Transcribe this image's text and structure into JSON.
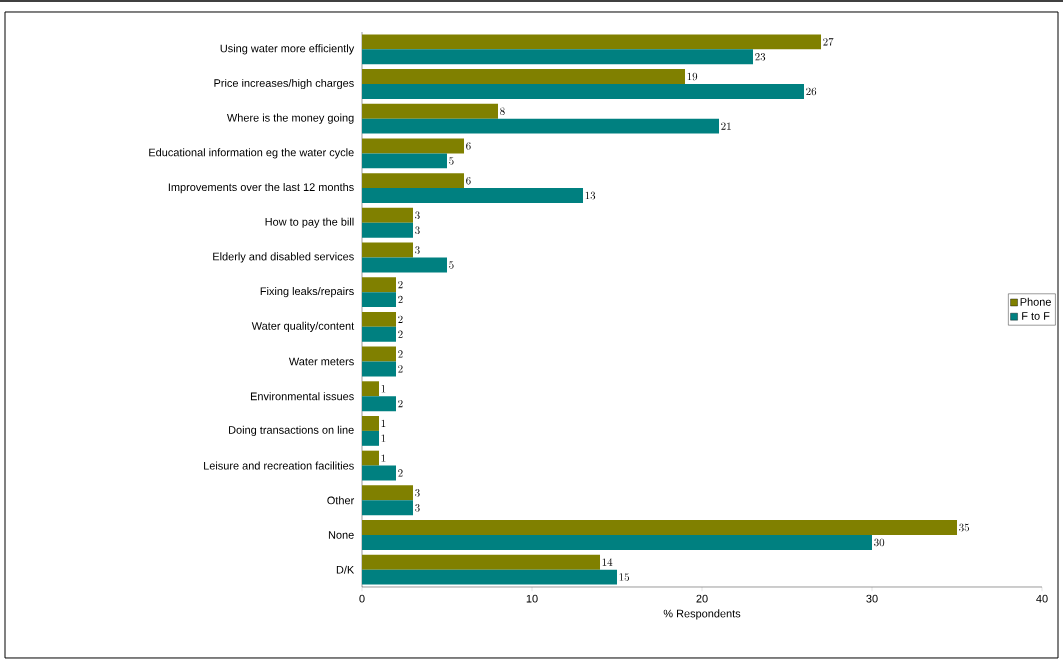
{
  "chart_data": {
    "type": "bar",
    "orientation": "horizontal",
    "xlabel": "% Respondents",
    "categories": [
      "Using water more efficiently",
      "Price increases/high charges",
      "Where is the money going",
      "Educational information eg the water cycle",
      "Improvements over the last 12 months",
      "How to pay the bill",
      "Elderly and disabled services",
      "Fixing leaks/repairs",
      "Water quality/content",
      "Water meters",
      "Environmental issues",
      "Doing transactions on line",
      "Leisure and recreation facilities",
      "Other",
      "None",
      "D/K"
    ],
    "series": [
      {
        "name": "Phone",
        "color": "#808000",
        "values": [
          27,
          19,
          8,
          6,
          6,
          3,
          3,
          2,
          2,
          2,
          1,
          1,
          1,
          3,
          35,
          14
        ]
      },
      {
        "name": "F to F",
        "color": "#008080",
        "values": [
          23,
          26,
          21,
          5,
          13,
          3,
          5,
          2,
          2,
          2,
          2,
          1,
          2,
          3,
          30,
          15
        ]
      }
    ],
    "xlim": [
      0,
      40
    ],
    "xticks": [
      0,
      10,
      20,
      30,
      40
    ],
    "data_labels": true,
    "legend": "right",
    "grid": false
  }
}
